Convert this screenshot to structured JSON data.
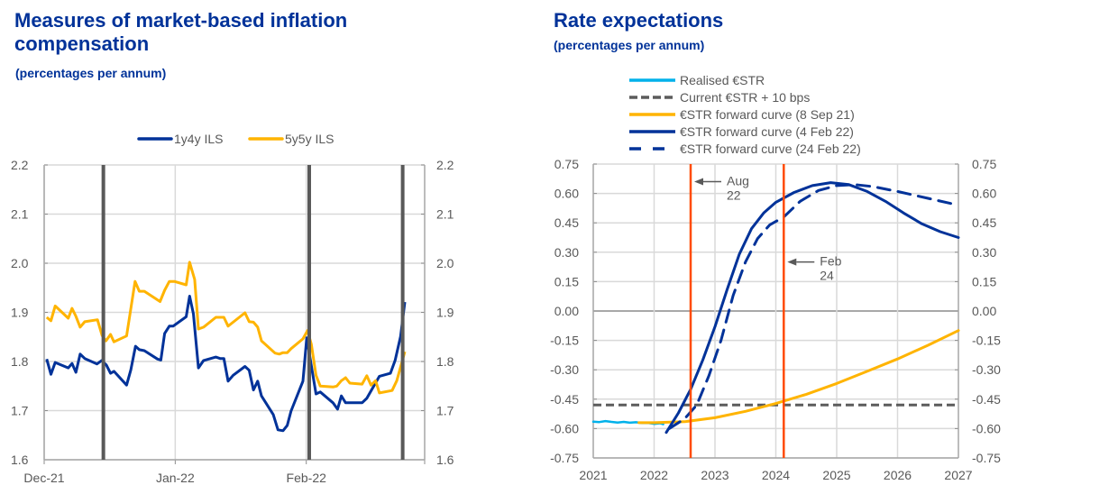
{
  "chart_data": [
    {
      "type": "line",
      "title": "Measures of market-based inflation compensation",
      "subtitle": "(percentages per annum)",
      "xlabel": "",
      "ylabel": "",
      "x_unit": "days since 1 Dec 2021",
      "x_range": [
        0,
        90
      ],
      "x_ticks": [
        {
          "day": 0,
          "label": "Dec-21"
        },
        {
          "day": 31,
          "label": "Jan-22"
        },
        {
          "day": 62,
          "label": "Feb-22"
        }
      ],
      "ylim": [
        1.6,
        2.2
      ],
      "y_ticks": [
        "1.6",
        "1.7",
        "1.8",
        "1.9",
        "2.0",
        "2.1",
        "2.2"
      ],
      "y_tick_values": [
        1.6,
        1.7,
        1.8,
        1.9,
        2.0,
        2.1,
        2.2
      ],
      "grid": true,
      "legend": "top-center",
      "event_lines_days": [
        14,
        62.7,
        84.8
      ],
      "series": [
        {
          "name": "1y4y ILS",
          "color": "#003299",
          "x": [
            0.6,
            1.6,
            2.6,
            5.7,
            6.6,
            7.5,
            8.5,
            9.6,
            12.5,
            13.6,
            14.7,
            15.7,
            16.5,
            19.5,
            20.5,
            21.6,
            22.5,
            23.7,
            26.8,
            27.6,
            28.5,
            29.6,
            30.5,
            33.6,
            34.4,
            35.3,
            36.5,
            37.7,
            40.6,
            41.6,
            42.5,
            43.5,
            44.7,
            47.5,
            48.5,
            49.5,
            50.5,
            51.4,
            54.2,
            55.3,
            56.5,
            57.5,
            58.4,
            61.2,
            62.1,
            62.7,
            64.3,
            65.3,
            68.3,
            69.4,
            70.3,
            71.3,
            75.2,
            76.3,
            79.3,
            81.9,
            83.0,
            84.3,
            85.3
          ],
          "values": [
            1.805,
            1.774,
            1.798,
            1.787,
            1.796,
            1.778,
            1.815,
            1.806,
            1.795,
            1.802,
            1.793,
            1.776,
            1.78,
            1.752,
            1.783,
            1.831,
            1.824,
            1.822,
            1.805,
            1.803,
            1.857,
            1.872,
            1.872,
            1.891,
            1.933,
            1.897,
            1.787,
            1.802,
            1.809,
            1.806,
            1.806,
            1.76,
            1.772,
            1.79,
            1.782,
            1.742,
            1.76,
            1.73,
            1.692,
            1.661,
            1.659,
            1.67,
            1.699,
            1.76,
            1.848,
            1.817,
            1.734,
            1.738,
            1.716,
            1.703,
            1.73,
            1.716,
            1.716,
            1.725,
            1.77,
            1.776,
            1.802,
            1.851,
            1.921
          ]
        },
        {
          "name": "5y5y ILS",
          "color": "#FFB400",
          "x": [
            0.6,
            1.6,
            2.6,
            5.7,
            6.6,
            7.5,
            8.5,
            9.6,
            12.6,
            13.7,
            14.6,
            15.7,
            16.5,
            19.5,
            21.5,
            22.5,
            23.7,
            27.4,
            28.5,
            29.6,
            30.8,
            33.6,
            34.4,
            35.6,
            36.5,
            37.7,
            40.6,
            42.5,
            43.5,
            47.5,
            48.5,
            49.5,
            50.5,
            51.4,
            54.6,
            55.6,
            56.5,
            57.5,
            58.4,
            61.2,
            62.3,
            63.2,
            64.3,
            65.3,
            68.3,
            69.2,
            70.3,
            71.3,
            72.3,
            75.2,
            76.3,
            77.3,
            78.4,
            79.3,
            82.3,
            83.4,
            85.3
          ],
          "values": [
            1.89,
            1.883,
            1.913,
            1.888,
            1.908,
            1.892,
            1.87,
            1.881,
            1.885,
            1.853,
            1.842,
            1.855,
            1.84,
            1.852,
            1.963,
            1.943,
            1.943,
            1.922,
            1.945,
            1.963,
            1.963,
            1.956,
            2.002,
            1.967,
            1.866,
            1.87,
            1.89,
            1.89,
            1.872,
            1.899,
            1.881,
            1.88,
            1.87,
            1.842,
            1.817,
            1.815,
            1.818,
            1.818,
            1.826,
            1.846,
            1.863,
            1.835,
            1.772,
            1.75,
            1.748,
            1.75,
            1.761,
            1.767,
            1.756,
            1.754,
            1.771,
            1.752,
            1.761,
            1.736,
            1.741,
            1.761,
            1.82
          ]
        }
      ]
    },
    {
      "type": "line",
      "title": "Rate expectations",
      "subtitle": "(percentages per annum)",
      "xlabel": "",
      "ylabel": "",
      "xlim": [
        2021,
        2027
      ],
      "x_ticks": [
        "2021",
        "2022",
        "2023",
        "2024",
        "2025",
        "2026",
        "2027"
      ],
      "x_tick_values": [
        2021,
        2022,
        2023,
        2024,
        2025,
        2026,
        2027
      ],
      "ylim": [
        -0.75,
        0.75
      ],
      "y_ticks": [
        "-0.75",
        "-0.60",
        "-0.45",
        "-0.30",
        "-0.15",
        "0.00",
        "0.15",
        "0.30",
        "0.45",
        "0.60",
        "0.75"
      ],
      "y_tick_values": [
        -0.75,
        -0.6,
        -0.45,
        -0.3,
        -0.15,
        0,
        0.15,
        0.3,
        0.45,
        0.6,
        0.75
      ],
      "grid": true,
      "legend": "top-center",
      "vertical_markers": [
        {
          "x": 2022.6,
          "label_line1": "Aug",
          "label_line2": "22",
          "color": "#FF4B00",
          "label_value_y": 0.66
        },
        {
          "x": 2024.13,
          "label_line1": "Feb",
          "label_line2": "24",
          "color": "#FF4B00",
          "label_value_y": 0.25
        }
      ],
      "series": [
        {
          "name": "Realised €STR",
          "color": "#00B1EA",
          "style": "solid",
          "x": [
            2021.0,
            2021.1,
            2021.2,
            2021.3,
            2021.4,
            2021.5,
            2021.6,
            2021.7,
            2021.8,
            2021.9,
            2022.0,
            2022.1,
            2022.15
          ],
          "values": [
            -0.565,
            -0.567,
            -0.562,
            -0.566,
            -0.569,
            -0.566,
            -0.57,
            -0.568,
            -0.572,
            -0.571,
            -0.576,
            -0.573,
            -0.578
          ]
        },
        {
          "name": "Current €STR + 10 bps",
          "color": "#5C5C5C",
          "style": "dashed-short",
          "x": [
            2021.0,
            2027.0
          ],
          "values": [
            -0.48,
            -0.48
          ]
        },
        {
          "name": "€STR forward curve (8 Sep 21)",
          "color": "#FFB400",
          "style": "solid",
          "x": [
            2021.75,
            2022.0,
            2022.5,
            2023.0,
            2023.5,
            2024.0,
            2024.5,
            2025.0,
            2025.5,
            2026.0,
            2026.5,
            2027.0
          ],
          "values": [
            -0.57,
            -0.57,
            -0.565,
            -0.545,
            -0.512,
            -0.472,
            -0.425,
            -0.37,
            -0.308,
            -0.245,
            -0.175,
            -0.1
          ]
        },
        {
          "name": "€STR forward curve (4 Feb 22)",
          "color": "#003299",
          "style": "solid",
          "x": [
            2022.2,
            2022.4,
            2022.6,
            2022.8,
            2023.0,
            2023.2,
            2023.4,
            2023.6,
            2023.8,
            2024.0,
            2024.3,
            2024.6,
            2024.9,
            2025.2,
            2025.5,
            2025.8,
            2026.1,
            2026.4,
            2026.7,
            2027.0
          ],
          "values": [
            -0.62,
            -0.52,
            -0.4,
            -0.25,
            -0.08,
            0.11,
            0.29,
            0.42,
            0.5,
            0.555,
            0.605,
            0.64,
            0.655,
            0.645,
            0.61,
            0.56,
            0.5,
            0.445,
            0.405,
            0.375
          ]
        },
        {
          "name": "€STR forward curve (24 Feb 22)",
          "color": "#003299",
          "style": "dashed-long",
          "x": [
            2022.25,
            2022.5,
            2022.7,
            2022.9,
            2023.1,
            2023.3,
            2023.5,
            2023.7,
            2023.9,
            2024.13,
            2024.4,
            2024.7,
            2025.0,
            2025.3,
            2025.6,
            2026.0,
            2026.5,
            2027.0
          ],
          "values": [
            -0.6,
            -0.55,
            -0.48,
            -0.33,
            -0.15,
            0.08,
            0.25,
            0.37,
            0.44,
            0.48,
            0.56,
            0.615,
            0.64,
            0.645,
            0.635,
            0.61,
            0.575,
            0.54
          ]
        }
      ]
    }
  ],
  "left": {
    "title": "Measures of market-based inflation compensation",
    "subtitle": "(percentages per annum)"
  },
  "right": {
    "title": "Rate expectations",
    "subtitle": "(percentages per annum)"
  }
}
